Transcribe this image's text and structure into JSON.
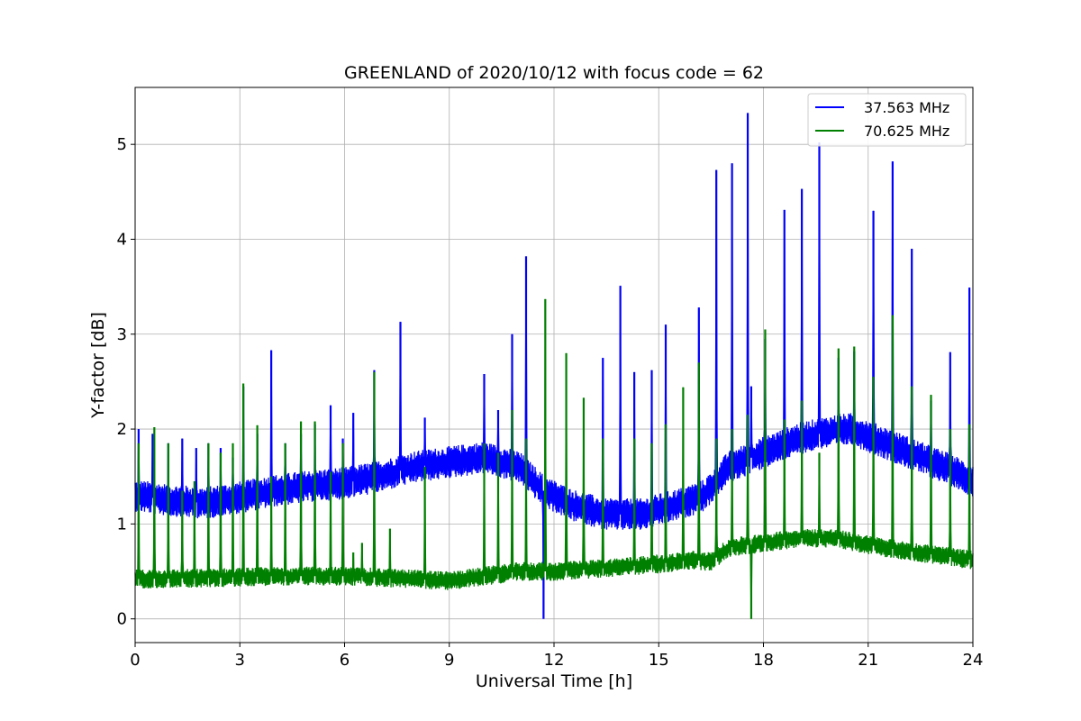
{
  "chart_data": {
    "type": "line",
    "title": "GREENLAND of 2020/10/12 with focus code = 62",
    "xlabel": "Universal Time [h]",
    "ylabel": "Y-factor [dB]",
    "xlim": [
      0,
      24
    ],
    "ylim": [
      -0.25,
      5.6
    ],
    "xticks": [
      0,
      3,
      6,
      9,
      12,
      15,
      18,
      21,
      24
    ],
    "yticks": [
      0,
      1,
      2,
      3,
      4,
      5
    ],
    "grid": true,
    "legend_position": "top-right",
    "series": [
      {
        "name": "37.563 MHz",
        "color": "#0000ff",
        "baseline": {
          "x": [
            0,
            1,
            2,
            3,
            4,
            5,
            6,
            7,
            8,
            9,
            10,
            11,
            11.7,
            12.5,
            13.5,
            14.5,
            15.5,
            16.3,
            17,
            18,
            19,
            20,
            20.5,
            21.5,
            22.5,
            23.5,
            24
          ],
          "y": [
            1.3,
            1.25,
            1.22,
            1.28,
            1.35,
            1.4,
            1.43,
            1.5,
            1.6,
            1.65,
            1.7,
            1.6,
            1.35,
            1.2,
            1.1,
            1.1,
            1.2,
            1.3,
            1.6,
            1.75,
            1.9,
            1.98,
            2.0,
            1.85,
            1.7,
            1.55,
            1.45
          ]
        },
        "band": 0.17,
        "spikes": [
          {
            "x": 0.1,
            "y": 2.0
          },
          {
            "x": 0.5,
            "y": 1.95
          },
          {
            "x": 0.95,
            "y": 1.85
          },
          {
            "x": 1.35,
            "y": 1.9
          },
          {
            "x": 1.75,
            "y": 1.8
          },
          {
            "x": 2.1,
            "y": 1.85
          },
          {
            "x": 2.45,
            "y": 1.8
          },
          {
            "x": 2.8,
            "y": 1.7
          },
          {
            "x": 3.1,
            "y": 2.45
          },
          {
            "x": 3.5,
            "y": 1.95
          },
          {
            "x": 3.9,
            "y": 2.83
          },
          {
            "x": 4.3,
            "y": 1.85
          },
          {
            "x": 4.75,
            "y": 1.95
          },
          {
            "x": 5.15,
            "y": 2.05
          },
          {
            "x": 5.6,
            "y": 2.25
          },
          {
            "x": 5.95,
            "y": 1.9
          },
          {
            "x": 6.25,
            "y": 2.17
          },
          {
            "x": 6.85,
            "y": 2.62
          },
          {
            "x": 7.6,
            "y": 3.13
          },
          {
            "x": 8.3,
            "y": 2.12
          },
          {
            "x": 10.0,
            "y": 2.58
          },
          {
            "x": 10.4,
            "y": 2.2
          },
          {
            "x": 10.8,
            "y": 3.0
          },
          {
            "x": 11.2,
            "y": 3.82
          },
          {
            "x": 11.7,
            "y": 0.0
          },
          {
            "x": 13.4,
            "y": 2.75
          },
          {
            "x": 13.9,
            "y": 3.51
          },
          {
            "x": 14.3,
            "y": 2.6
          },
          {
            "x": 14.8,
            "y": 2.62
          },
          {
            "x": 15.2,
            "y": 3.1
          },
          {
            "x": 16.15,
            "y": 3.28
          },
          {
            "x": 16.65,
            "y": 4.73
          },
          {
            "x": 17.1,
            "y": 4.8
          },
          {
            "x": 17.55,
            "y": 5.33
          },
          {
            "x": 17.65,
            "y": 2.45
          },
          {
            "x": 18.05,
            "y": 2.95
          },
          {
            "x": 18.6,
            "y": 4.31
          },
          {
            "x": 19.1,
            "y": 4.53
          },
          {
            "x": 19.6,
            "y": 5.02
          },
          {
            "x": 20.15,
            "y": 2.75
          },
          {
            "x": 20.6,
            "y": 2.82
          },
          {
            "x": 21.15,
            "y": 4.3
          },
          {
            "x": 21.7,
            "y": 4.82
          },
          {
            "x": 22.25,
            "y": 3.9
          },
          {
            "x": 22.8,
            "y": 2.3
          },
          {
            "x": 23.35,
            "y": 2.81
          },
          {
            "x": 23.9,
            "y": 3.49
          }
        ]
      },
      {
        "name": "70.625 MHz",
        "color": "#008000",
        "baseline": {
          "x": [
            0,
            2,
            4,
            6,
            8,
            9,
            10,
            11,
            12,
            13,
            14,
            15,
            16,
            16.5,
            17,
            18,
            19,
            20,
            21,
            22,
            23,
            24
          ],
          "y": [
            0.42,
            0.43,
            0.45,
            0.45,
            0.42,
            0.4,
            0.45,
            0.5,
            0.5,
            0.52,
            0.55,
            0.58,
            0.62,
            0.6,
            0.75,
            0.8,
            0.85,
            0.85,
            0.78,
            0.72,
            0.67,
            0.62
          ]
        },
        "band": 0.1,
        "spikes": [
          {
            "x": 0.1,
            "y": 1.85
          },
          {
            "x": 0.55,
            "y": 2.02
          },
          {
            "x": 0.95,
            "y": 1.85
          },
          {
            "x": 1.35,
            "y": 1.35
          },
          {
            "x": 1.7,
            "y": 1.45
          },
          {
            "x": 2.1,
            "y": 1.85
          },
          {
            "x": 2.45,
            "y": 1.75
          },
          {
            "x": 2.8,
            "y": 1.85
          },
          {
            "x": 3.1,
            "y": 2.48
          },
          {
            "x": 3.5,
            "y": 2.04
          },
          {
            "x": 3.9,
            "y": 1.5
          },
          {
            "x": 4.3,
            "y": 1.85
          },
          {
            "x": 4.75,
            "y": 2.08
          },
          {
            "x": 5.15,
            "y": 2.08
          },
          {
            "x": 5.6,
            "y": 1.55
          },
          {
            "x": 5.95,
            "y": 1.85
          },
          {
            "x": 6.25,
            "y": 0.7
          },
          {
            "x": 6.5,
            "y": 0.8
          },
          {
            "x": 6.85,
            "y": 2.6
          },
          {
            "x": 7.3,
            "y": 0.95
          },
          {
            "x": 8.3,
            "y": 1.6
          },
          {
            "x": 10.0,
            "y": 1.85
          },
          {
            "x": 10.4,
            "y": 1.75
          },
          {
            "x": 10.8,
            "y": 2.2
          },
          {
            "x": 11.2,
            "y": 1.9
          },
          {
            "x": 11.75,
            "y": 3.37
          },
          {
            "x": 12.35,
            "y": 2.8
          },
          {
            "x": 12.85,
            "y": 2.33
          },
          {
            "x": 13.4,
            "y": 1.9
          },
          {
            "x": 14.3,
            "y": 1.9
          },
          {
            "x": 14.8,
            "y": 1.85
          },
          {
            "x": 15.2,
            "y": 2.05
          },
          {
            "x": 15.7,
            "y": 2.44
          },
          {
            "x": 16.15,
            "y": 2.7
          },
          {
            "x": 16.65,
            "y": 1.9
          },
          {
            "x": 17.1,
            "y": 2.0
          },
          {
            "x": 17.55,
            "y": 2.15
          },
          {
            "x": 17.65,
            "y": 0.0
          },
          {
            "x": 18.05,
            "y": 3.05
          },
          {
            "x": 18.6,
            "y": 2.1
          },
          {
            "x": 19.1,
            "y": 2.3
          },
          {
            "x": 19.6,
            "y": 1.75
          },
          {
            "x": 20.15,
            "y": 2.85
          },
          {
            "x": 20.6,
            "y": 2.87
          },
          {
            "x": 21.15,
            "y": 2.55
          },
          {
            "x": 21.7,
            "y": 3.2
          },
          {
            "x": 22.25,
            "y": 2.45
          },
          {
            "x": 22.8,
            "y": 2.36
          },
          {
            "x": 23.35,
            "y": 2.0
          },
          {
            "x": 23.9,
            "y": 2.05
          }
        ]
      }
    ]
  }
}
